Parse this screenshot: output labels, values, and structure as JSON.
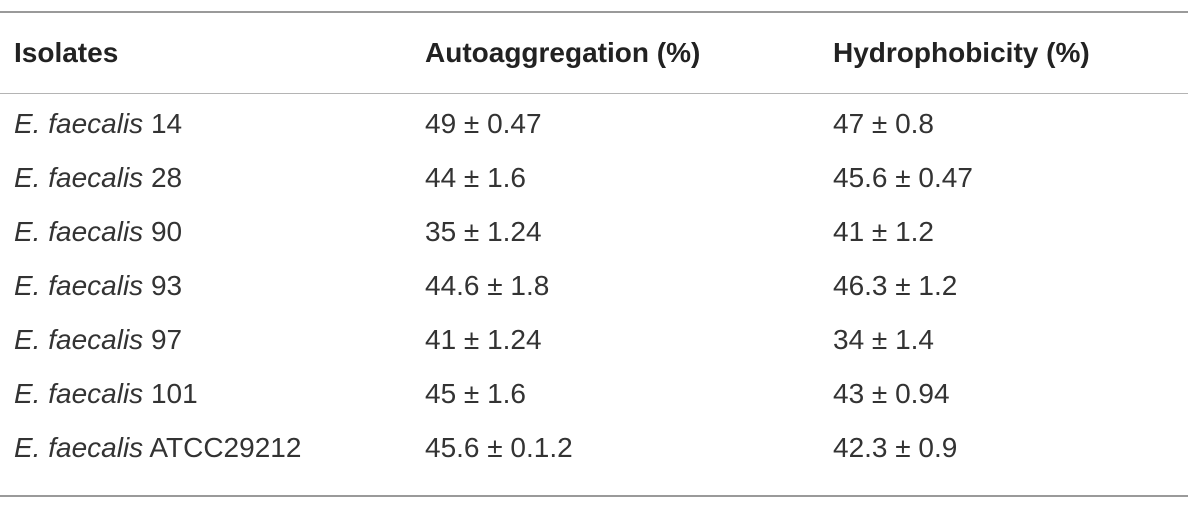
{
  "table": {
    "headers": [
      "Isolates",
      "Autoaggregation (%)",
      "Hydrophobicity (%)"
    ],
    "rows": [
      {
        "species": "E. faecalis",
        "strain": "14",
        "autoaggregation": "49 ± 0.47",
        "hydrophobicity": "47 ± 0.8"
      },
      {
        "species": "E. faecalis",
        "strain": "28",
        "autoaggregation": "44 ± 1.6",
        "hydrophobicity": "45.6 ± 0.47"
      },
      {
        "species": "E. faecalis",
        "strain": "90",
        "autoaggregation": "35 ± 1.24",
        "hydrophobicity": "41 ± 1.2"
      },
      {
        "species": "E. faecalis",
        "strain": "93",
        "autoaggregation": "44.6 ± 1.8",
        "hydrophobicity": "46.3 ± 1.2"
      },
      {
        "species": "E. faecalis",
        "strain": "97",
        "autoaggregation": "41 ± 1.24",
        "hydrophobicity": "34 ± 1.4"
      },
      {
        "species": "E. faecalis",
        "strain": "101",
        "autoaggregation": "45 ± 1.6",
        "hydrophobicity": "43 ± 0.94"
      },
      {
        "species": "E. faecalis",
        "strain": "ATCC29212",
        "autoaggregation": "45.6 ± 0.1.2",
        "hydrophobicity": "42.3 ± 0.9"
      }
    ]
  }
}
